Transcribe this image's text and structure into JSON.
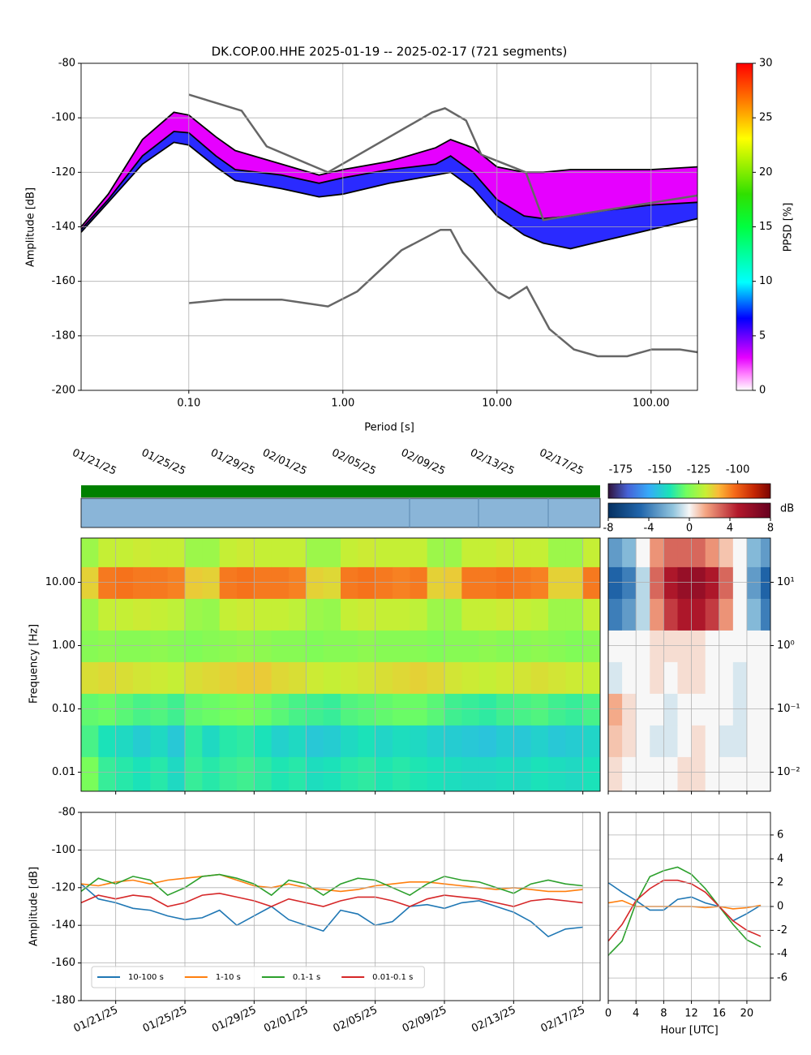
{
  "chart_data": [
    {
      "type": "line",
      "title": "DK.COP.00.HHE   2025-01-19 -- 2025-02-17  (721 segments)",
      "x_label": "Period [s]",
      "y_label": "Amplitude [dB]",
      "x_log": true,
      "grid": true,
      "xlim": [
        0.02,
        200
      ],
      "xticks": [
        {
          "value": 0.1,
          "label": "0.10"
        },
        {
          "value": 1,
          "label": "1.00"
        },
        {
          "value": 10,
          "label": "10.00"
        },
        {
          "value": 100,
          "label": "100.00"
        }
      ],
      "ylim": [
        -200,
        -80
      ],
      "yticks": [
        -200,
        -180,
        -160,
        -140,
        -120,
        -100,
        -80
      ],
      "colorbar": {
        "label": "PPSD [%]",
        "lim": [
          0,
          30
        ],
        "ticks": [
          0,
          5,
          10,
          15,
          20,
          25,
          30
        ]
      },
      "band_color": "#e600ff",
      "core_color": "#2a2aff",
      "x": [
        0.02,
        0.03,
        0.05,
        0.08,
        0.1,
        0.15,
        0.2,
        0.4,
        0.7,
        1,
        2,
        4,
        5,
        7,
        10,
        15,
        20,
        30,
        50,
        100,
        200
      ],
      "series": [
        {
          "color": "#000000",
          "values": [
            -140,
            -128,
            -108,
            -98,
            -99,
            -107,
            -112,
            -117,
            -121,
            -119,
            -116,
            -111,
            -108,
            -111,
            -118,
            -120,
            -120,
            -119,
            -119,
            -119,
            -118
          ]
        },
        {
          "color": "#000000",
          "values": [
            -141,
            -130,
            -114,
            -105,
            -105.5,
            -114,
            -119,
            -121,
            -124,
            -122,
            -119,
            -117,
            -114,
            -120,
            -130,
            -136,
            -137,
            -136,
            -134,
            -132,
            -131
          ]
        },
        {
          "color": "#000000",
          "values": [
            -142,
            -131,
            -117,
            -109,
            -110,
            -118,
            -123,
            -126,
            -129,
            -128,
            -124,
            -121,
            -120,
            -126,
            -136,
            -143,
            -146,
            -148,
            -145,
            -141,
            -137
          ]
        }
      ],
      "noise_models": [
        {
          "color": "#666666",
          "x": [
            0.1,
            0.22,
            0.32,
            0.8,
            3.8,
            4.6,
            6.3,
            7.9,
            15.4,
            20,
            200
          ],
          "values": [
            -91.5,
            -97.4,
            -110.5,
            -120,
            -98,
            -96.5,
            -101,
            -113.5,
            -120,
            -137.5,
            -128.5
          ]
        },
        {
          "color": "#666666",
          "x": [
            0.1,
            0.17,
            0.4,
            0.8,
            1.24,
            2.4,
            4.3,
            5,
            6,
            10,
            12,
            15.6,
            21.9,
            31.6,
            45,
            70,
            101,
            154,
            200
          ],
          "values": [
            -168,
            -166.7,
            -166.7,
            -169.2,
            -163.7,
            -148.6,
            -141.1,
            -141.1,
            -149.4,
            -163.8,
            -166.2,
            -162.1,
            -177.5,
            -185,
            -187.5,
            -187.5,
            -185,
            -185,
            -186
          ]
        }
      ]
    },
    {
      "type": "heatmap",
      "y_label": "Frequency [Hz]",
      "y_log": true,
      "grid": true,
      "xlim": [
        "01/19/25",
        "02/18/25"
      ],
      "xticks": [
        "01/21/25",
        "01/25/25",
        "01/29/25",
        "02/01/25",
        "02/05/25",
        "02/09/25",
        "02/13/25",
        "02/17/25"
      ],
      "ylim": [
        0.005,
        50
      ],
      "yticks": [
        {
          "value": 0.01,
          "label": "0.01"
        },
        {
          "value": 0.1,
          "label": "0.10"
        },
        {
          "value": 1,
          "label": "1.00"
        },
        {
          "value": 10,
          "label": "10.00"
        }
      ],
      "colorbar": {
        "lim": [
          -183,
          -79
        ],
        "ticks": [
          -175,
          -150,
          -125,
          -100
        ]
      },
      "x": [
        "01/19/25",
        "01/20/25",
        "01/21/25",
        "01/22/25",
        "01/23/25",
        "01/24/25",
        "01/25/25",
        "01/26/25",
        "01/27/25",
        "01/28/25",
        "01/29/25",
        "01/30/25",
        "01/31/25",
        "02/01/25",
        "02/02/25",
        "02/03/25",
        "02/04/25",
        "02/05/25",
        "02/06/25",
        "02/07/25",
        "02/08/25",
        "02/09/25",
        "02/10/25",
        "02/11/25",
        "02/12/25",
        "02/13/25",
        "02/14/25",
        "02/15/25",
        "02/16/25",
        "02/17/25"
      ],
      "y": [
        30,
        10,
        3,
        1,
        0.3,
        0.1,
        0.03,
        0.01
      ],
      "z": [
        [
          -127,
          -121,
          -121,
          -120,
          -121,
          -121,
          -127,
          -127,
          -121,
          -120,
          -121,
          -121,
          -121,
          -127,
          -127,
          -121,
          -120,
          -121,
          -121,
          -121,
          -127,
          -127,
          -121,
          -121,
          -120,
          -121,
          -121,
          -127,
          -127,
          -121
        ],
        [
          -116,
          -104,
          -103,
          -104,
          -104,
          -105,
          -115,
          -116,
          -104,
          -103,
          -104,
          -104,
          -105,
          -116,
          -117,
          -104,
          -103,
          -104,
          -105,
          -104,
          -116,
          -115,
          -104,
          -104,
          -103,
          -104,
          -105,
          -116,
          -116,
          -104
        ],
        [
          -127,
          -121,
          -121,
          -120,
          -121,
          -122,
          -127,
          -128,
          -121,
          -120,
          -121,
          -121,
          -122,
          -127,
          -128,
          -121,
          -120,
          -121,
          -121,
          -122,
          -127,
          -127,
          -121,
          -121,
          -120,
          -121,
          -122,
          -127,
          -127,
          -121
        ],
        [
          -130,
          -129,
          -130,
          -130,
          -129,
          -130,
          -131,
          -130,
          -129,
          -128,
          -129,
          -130,
          -130,
          -131,
          -130,
          -130,
          -129,
          -130,
          -130,
          -130,
          -131,
          -130,
          -130,
          -129,
          -130,
          -130,
          -129,
          -130,
          -131,
          -130
        ],
        [
          -118,
          -117,
          -118,
          -119,
          -120,
          -121,
          -118,
          -117,
          -116,
          -115,
          -115,
          -117,
          -118,
          -120,
          -121,
          -120,
          -119,
          -118,
          -117,
          -116,
          -117,
          -119,
          -120,
          -121,
          -120,
          -119,
          -118,
          -119,
          -120,
          -121
        ],
        [
          -135,
          -134,
          -136,
          -138,
          -137,
          -139,
          -135,
          -134,
          -133,
          -132,
          -134,
          -136,
          -138,
          -139,
          -140,
          -137,
          -136,
          -135,
          -134,
          -134,
          -136,
          -139,
          -140,
          -141,
          -139,
          -138,
          -137,
          -139,
          -140,
          -138
        ],
        [
          -138,
          -144,
          -146,
          -149,
          -146,
          -150,
          -141,
          -146,
          -142,
          -141,
          -144,
          -148,
          -146,
          -150,
          -149,
          -146,
          -144,
          -147,
          -145,
          -146,
          -148,
          -149,
          -150,
          -151,
          -149,
          -150,
          -148,
          -150,
          -149,
          -147
        ],
        [
          -132,
          -140,
          -142,
          -144,
          -142,
          -146,
          -140,
          -142,
          -140,
          -139,
          -141,
          -143,
          -142,
          -145,
          -144,
          -142,
          -141,
          -143,
          -142,
          -143,
          -144,
          -145,
          -146,
          -146,
          -145,
          -146,
          -144,
          -145,
          -146,
          -144
        ]
      ]
    },
    {
      "type": "heatmap",
      "y_log": true,
      "grid": true,
      "xlim": [
        0,
        23.4
      ],
      "xticks": [
        0,
        4,
        8,
        12,
        16,
        20
      ],
      "ylim": [
        0.005,
        50
      ],
      "yticks": [
        {
          "value": 0.01,
          "label": "10⁻²"
        },
        {
          "value": 0.1,
          "label": "10⁻¹"
        },
        {
          "value": 1,
          "label": "10⁰"
        },
        {
          "value": 10,
          "label": "10¹"
        }
      ],
      "colorbar": {
        "label": "dB",
        "lim": [
          -8,
          8
        ],
        "ticks": [
          -8,
          -4,
          0,
          4,
          8
        ]
      },
      "x": [
        0,
        2,
        4,
        6,
        8,
        10,
        12,
        14,
        16,
        18,
        20,
        22
      ],
      "y": [
        30,
        10,
        3,
        1,
        0.3,
        0.1,
        0.03,
        0.01
      ],
      "z": [
        [
          -3,
          -2,
          0,
          2,
          3,
          3,
          3,
          2,
          1,
          0,
          -2,
          -3
        ],
        [
          -5,
          -4,
          -1,
          3,
          5,
          6,
          6,
          5,
          3,
          0,
          -3,
          -5
        ],
        [
          -4,
          -3,
          -1,
          2,
          4,
          5,
          5,
          4,
          2,
          0,
          -2,
          -4
        ],
        [
          0,
          0,
          0,
          0.5,
          0.5,
          0.5,
          0.5,
          0,
          0,
          0,
          0,
          0
        ],
        [
          -0.5,
          0,
          0,
          0.5,
          0,
          0.5,
          0.5,
          0,
          0,
          -0.5,
          0,
          0
        ],
        [
          1.5,
          0.5,
          0,
          0,
          -0.5,
          0,
          0,
          0,
          0,
          -0.5,
          0,
          0
        ],
        [
          1,
          0.5,
          0,
          -0.5,
          -0.5,
          0,
          0.5,
          0,
          -0.5,
          -0.5,
          0,
          0
        ],
        [
          0.5,
          0,
          0,
          0,
          0,
          0.5,
          0.5,
          0,
          0,
          0,
          0,
          0
        ]
      ]
    },
    {
      "type": "line",
      "y_label": "Amplitude [dB]",
      "grid": true,
      "legend": "lower left",
      "xlim": [
        "01/19/25",
        "02/18/25"
      ],
      "xticks": [
        "01/21/25",
        "01/25/25",
        "01/29/25",
        "02/01/25",
        "02/05/25",
        "02/09/25",
        "02/13/25",
        "02/17/25"
      ],
      "ylim": [
        -180,
        -80
      ],
      "yticks": [
        -180,
        -160,
        -140,
        -120,
        -100,
        -80
      ],
      "x": [
        "01/19/25",
        "01/20/25",
        "01/21/25",
        "01/22/25",
        "01/23/25",
        "01/24/25",
        "01/25/25",
        "01/26/25",
        "01/27/25",
        "01/28/25",
        "01/29/25",
        "01/30/25",
        "01/31/25",
        "02/01/25",
        "02/02/25",
        "02/03/25",
        "02/04/25",
        "02/05/25",
        "02/06/25",
        "02/07/25",
        "02/08/25",
        "02/09/25",
        "02/10/25",
        "02/11/25",
        "02/12/25",
        "02/13/25",
        "02/14/25",
        "02/15/25",
        "02/16/25",
        "02/17/25"
      ],
      "series": [
        {
          "name": "10-100 s",
          "color": "#1f77b4",
          "values": [
            -118,
            -126,
            -128,
            -131,
            -132,
            -135,
            -137,
            -136,
            -132,
            -140,
            -135,
            -130,
            -137,
            -140,
            -143,
            -132,
            -134,
            -140,
            -138,
            -130,
            -129,
            -131,
            -128,
            -127,
            -130,
            -133,
            -138,
            -146,
            -142,
            -141
          ]
        },
        {
          "name": "1-10 s",
          "color": "#ff7f0e",
          "values": [
            -118,
            -119,
            -117,
            -116,
            -118,
            -116,
            -115,
            -114,
            -113,
            -116,
            -119,
            -120,
            -118,
            -120,
            -121,
            -122,
            -121,
            -119,
            -118,
            -117,
            -117,
            -118,
            -119,
            -120,
            -121,
            -120,
            -121,
            -122,
            -122,
            -121
          ]
        },
        {
          "name": "0.1-1 s",
          "color": "#2ca02c",
          "values": [
            -122,
            -115,
            -118,
            -114,
            -116,
            -124,
            -120,
            -114,
            -113,
            -115,
            -118,
            -124,
            -116,
            -118,
            -124,
            -118,
            -115,
            -116,
            -120,
            -124,
            -118,
            -114,
            -116,
            -117,
            -120,
            -123,
            -118,
            -116,
            -118,
            -119
          ]
        },
        {
          "name": "0.01-0.1 s",
          "color": "#d62728",
          "values": [
            -128,
            -124,
            -126,
            -124,
            -125,
            -130,
            -128,
            -124,
            -123,
            -125,
            -127,
            -130,
            -126,
            -128,
            -130,
            -127,
            -125,
            -125,
            -127,
            -130,
            -126,
            -124,
            -125,
            -126,
            -128,
            -130,
            -127,
            -126,
            -127,
            -128
          ]
        }
      ]
    },
    {
      "type": "line",
      "x_label": "Hour [UTC]",
      "grid": true,
      "y_axis_side": "right",
      "xlim": [
        0,
        23.4
      ],
      "xticks": [
        0,
        4,
        8,
        12,
        16,
        20
      ],
      "ylim": [
        -7.9,
        7.9
      ],
      "yticks": [
        -6,
        -4,
        -2,
        0,
        2,
        4,
        6
      ],
      "x": [
        0,
        2,
        4,
        6,
        8,
        10,
        12,
        14,
        16,
        18,
        20,
        22
      ],
      "series": [
        {
          "color": "#1f77b4",
          "values": [
            2,
            1.2,
            0.5,
            -0.3,
            -0.3,
            0.6,
            0.8,
            0.3,
            0,
            -1.2,
            -0.6,
            0.1
          ]
        },
        {
          "color": "#ff7f0e",
          "values": [
            0.3,
            0.5,
            0,
            0,
            0,
            0,
            0,
            -0.1,
            0,
            -0.2,
            -0.1,
            0.1
          ]
        },
        {
          "color": "#2ca02c",
          "values": [
            -4.1,
            -2.9,
            0.3,
            2.5,
            3,
            3.3,
            2.7,
            1.5,
            0,
            -1.5,
            -2.8,
            -3.4
          ]
        },
        {
          "color": "#d62728",
          "values": [
            -2.9,
            -1.5,
            0.5,
            1.5,
            2.2,
            2.2,
            1.9,
            1.2,
            0,
            -1.2,
            -2,
            -2.5
          ]
        }
      ]
    }
  ]
}
